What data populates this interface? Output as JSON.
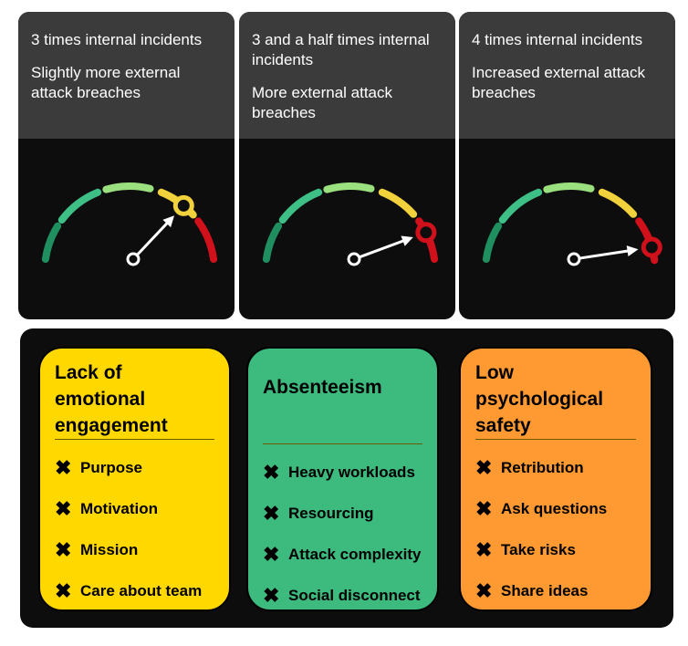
{
  "gauges": [
    {
      "lines": [
        "3 times internal incidents",
        "Slightly more external attack breaches"
      ],
      "value": 0.72,
      "marker_color": "#f2d23c"
    },
    {
      "lines": [
        "3 and a half times internal incidents",
        "More external attack breaches"
      ],
      "value": 0.85,
      "marker_color": "#d0101a"
    },
    {
      "lines": [
        "4 times internal incidents",
        "Increased external attack breaches"
      ],
      "value": 0.91,
      "marker_color": "#d0101a"
    }
  ],
  "segment_colors": [
    "#1f8f5f",
    "#3dbf86",
    "#9be07e",
    "#f2d23c",
    "#d0101a"
  ],
  "cards": [
    {
      "title": "Lack of emotional engagement",
      "color": "#ffd800",
      "items": [
        "Purpose",
        "Motivation",
        "Mission",
        "Care about team"
      ]
    },
    {
      "title": "Absenteeism",
      "color": "#3dba7e",
      "items": [
        "Heavy workloads",
        "Resourcing",
        "Attack complexity",
        "Social disconnect"
      ]
    },
    {
      "title": "Low psychological safety",
      "color": "#ff9a33",
      "items": [
        "Retribution",
        "Ask questions",
        "Take risks",
        "Share ideas"
      ]
    }
  ],
  "item_icon": "cross-mark-icon"
}
